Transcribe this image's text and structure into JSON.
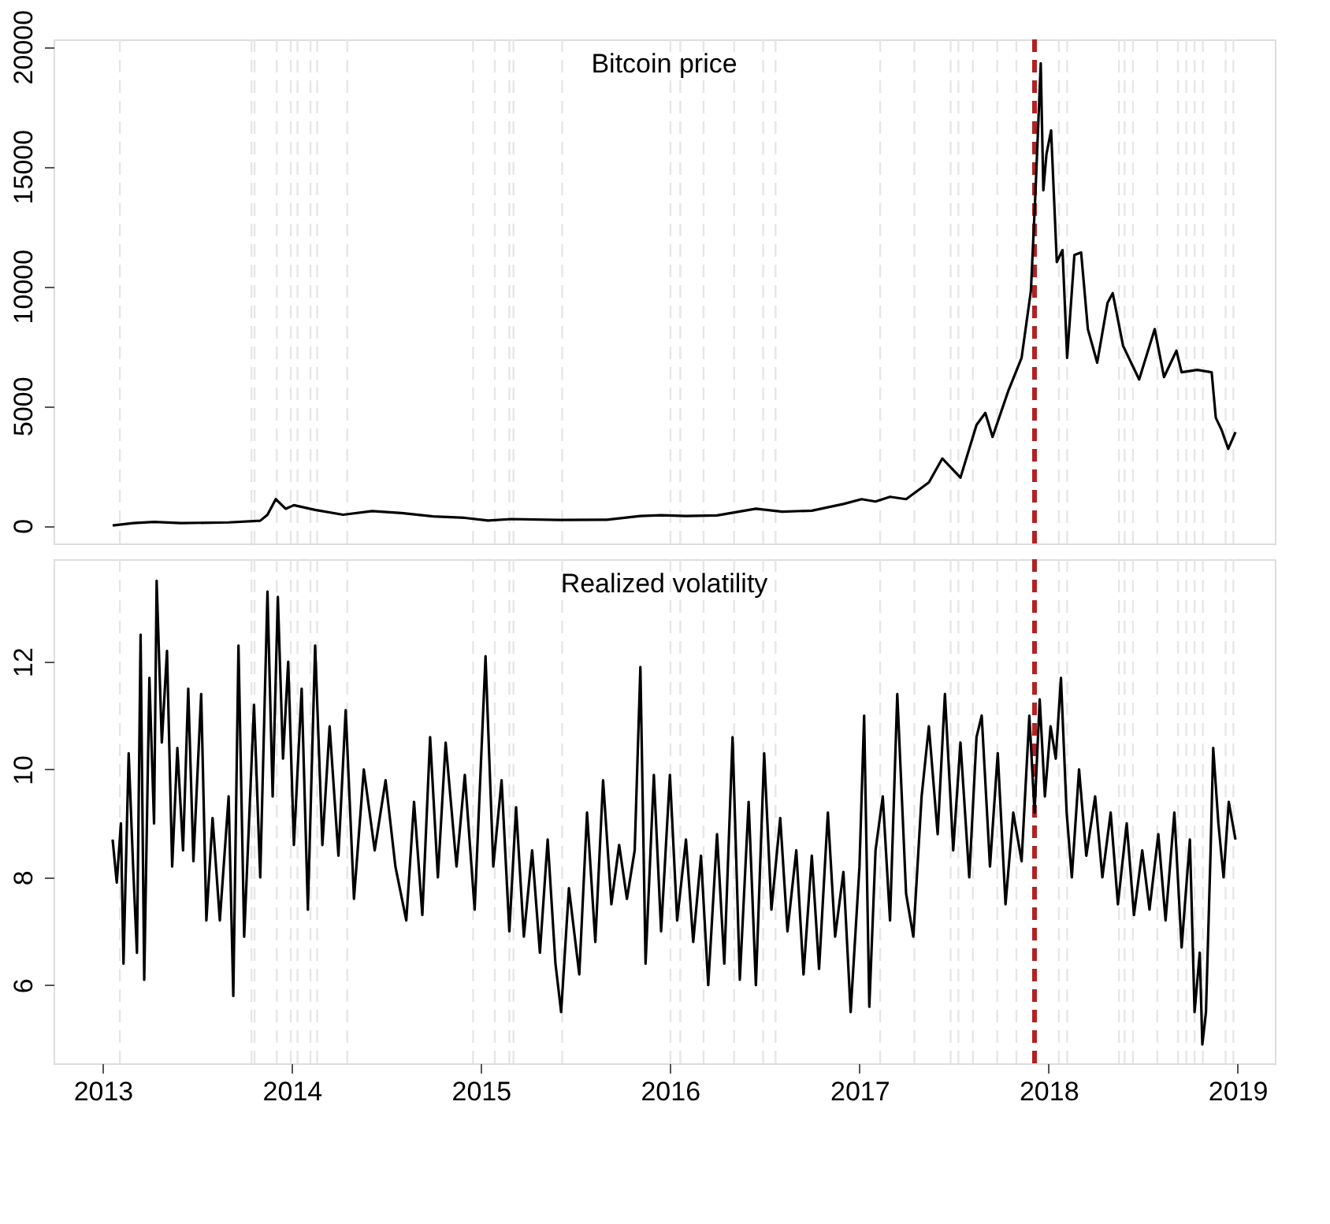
{
  "chart_data": [
    {
      "type": "line",
      "title": "Bitcoin price",
      "color": "#000000",
      "tick_labels": "y",
      "xlim": [
        "2012-09-28",
        "2019-03-14"
      ],
      "ylim": [
        -750,
        20300
      ],
      "yticks": [
        0,
        5000,
        10000,
        15000,
        20000
      ],
      "x": [
        "2013-01-20",
        "2013-03-01",
        "2013-04-10",
        "2013-06-01",
        "2013-09-01",
        "2013-11-01",
        "2013-11-15",
        "2013-12-01",
        "2013-12-20",
        "2014-01-05",
        "2014-02-15",
        "2014-04-10",
        "2014-06-05",
        "2014-08-01",
        "2014-10-01",
        "2014-12-01",
        "2015-01-15",
        "2015-03-01",
        "2015-06-01",
        "2015-09-01",
        "2015-11-05",
        "2015-12-15",
        "2016-02-01",
        "2016-04-01",
        "2016-06-15",
        "2016-08-05",
        "2016-10-01",
        "2016-12-01",
        "2017-01-05",
        "2017-02-01",
        "2017-03-01",
        "2017-04-01",
        "2017-05-15",
        "2017-06-10",
        "2017-07-15",
        "2017-08-15",
        "2017-09-01",
        "2017-09-15",
        "2017-10-15",
        "2017-11-10",
        "2017-11-28",
        "2017-12-07",
        "2017-12-17",
        "2017-12-22",
        "2017-12-28",
        "2018-01-06",
        "2018-01-17",
        "2018-01-28",
        "2018-02-06",
        "2018-02-20",
        "2018-03-05",
        "2018-03-18",
        "2018-04-05",
        "2018-04-25",
        "2018-05-05",
        "2018-05-25",
        "2018-06-25",
        "2018-07-25",
        "2018-08-12",
        "2018-09-05",
        "2018-09-15",
        "2018-10-15",
        "2018-11-12",
        "2018-11-20",
        "2018-12-01",
        "2018-12-14",
        "2018-12-28"
      ],
      "values": [
        0,
        100,
        150,
        100,
        130,
        200,
        450,
        1100,
        700,
        850,
        650,
        450,
        600,
        520,
        380,
        320,
        210,
        270,
        230,
        240,
        400,
        430,
        400,
        420,
        700,
        580,
        620,
        900,
        1100,
        1000,
        1200,
        1100,
        1800,
        2800,
        2000,
        4200,
        4700,
        3700,
        5600,
        7000,
        9800,
        14000,
        19300,
        14000,
        15500,
        16500,
        11000,
        11500,
        7000,
        11300,
        11400,
        8200,
        6800,
        9300,
        9700,
        7500,
        6100,
        8200,
        6200,
        7300,
        6400,
        6500,
        6400,
        4500,
        4000,
        3200,
        3900
      ],
      "ref_lines": [
        {
          "axis": "x",
          "value": "2013-02-03",
          "color": "#e6e6e6",
          "line_style": "dashed"
        },
        {
          "axis": "x",
          "value": "2013-10-15",
          "color": "#e6e6e6",
          "line_style": "dashed"
        },
        {
          "axis": "x",
          "value": "2013-10-21",
          "color": "#e6e6e6",
          "line_style": "dashed"
        },
        {
          "axis": "x",
          "value": "2013-12-03",
          "color": "#e6e6e6",
          "line_style": "dashed"
        },
        {
          "axis": "x",
          "value": "2013-12-30",
          "color": "#e6e6e6",
          "line_style": "dashed"
        },
        {
          "axis": "x",
          "value": "2014-01-12",
          "color": "#e6e6e6",
          "line_style": "dashed"
        },
        {
          "axis": "x",
          "value": "2014-02-06",
          "color": "#e6e6e6",
          "line_style": "dashed"
        },
        {
          "axis": "x",
          "value": "2014-02-19",
          "color": "#e6e6e6",
          "line_style": "dashed"
        },
        {
          "axis": "x",
          "value": "2014-04-18",
          "color": "#e6e6e6",
          "line_style": "dashed"
        },
        {
          "axis": "x",
          "value": "2014-12-17",
          "color": "#e6e6e6",
          "line_style": "dashed"
        },
        {
          "axis": "x",
          "value": "2015-01-28",
          "color": "#e6e6e6",
          "line_style": "dashed"
        },
        {
          "axis": "x",
          "value": "2015-02-25",
          "color": "#e6e6e6",
          "line_style": "dashed"
        },
        {
          "axis": "x",
          "value": "2015-03-05",
          "color": "#e6e6e6",
          "line_style": "dashed"
        },
        {
          "axis": "x",
          "value": "2015-06-07",
          "color": "#e6e6e6",
          "line_style": "dashed"
        },
        {
          "axis": "x",
          "value": "2016-01-02",
          "color": "#e6e6e6",
          "line_style": "dashed"
        },
        {
          "axis": "x",
          "value": "2016-01-21",
          "color": "#e6e6e6",
          "line_style": "dashed"
        },
        {
          "axis": "x",
          "value": "2016-03-06",
          "color": "#e6e6e6",
          "line_style": "dashed"
        },
        {
          "axis": "x",
          "value": "2016-05-04",
          "color": "#e6e6e6",
          "line_style": "dashed"
        },
        {
          "axis": "x",
          "value": "2016-06-29",
          "color": "#e6e6e6",
          "line_style": "dashed"
        },
        {
          "axis": "x",
          "value": "2016-07-23",
          "color": "#e6e6e6",
          "line_style": "dashed"
        },
        {
          "axis": "x",
          "value": "2017-02-10",
          "color": "#e6e6e6",
          "line_style": "dashed"
        },
        {
          "axis": "x",
          "value": "2017-04-17",
          "color": "#e6e6e6",
          "line_style": "dashed"
        },
        {
          "axis": "x",
          "value": "2017-06-26",
          "color": "#e6e6e6",
          "line_style": "dashed"
        },
        {
          "axis": "x",
          "value": "2017-07-11",
          "color": "#e6e6e6",
          "line_style": "dashed"
        },
        {
          "axis": "x",
          "value": "2017-08-08",
          "color": "#e6e6e6",
          "line_style": "dashed"
        },
        {
          "axis": "x",
          "value": "2017-09-24",
          "color": "#e6e6e6",
          "line_style": "dashed"
        },
        {
          "axis": "x",
          "value": "2017-10-31",
          "color": "#e6e6e6",
          "line_style": "dashed"
        },
        {
          "axis": "x",
          "value": "2018-01-21",
          "color": "#e6e6e6",
          "line_style": "dashed"
        },
        {
          "axis": "x",
          "value": "2018-02-06",
          "color": "#e6e6e6",
          "line_style": "dashed"
        },
        {
          "axis": "x",
          "value": "2018-05-17",
          "color": "#e6e6e6",
          "line_style": "dashed"
        },
        {
          "axis": "x",
          "value": "2018-05-28",
          "color": "#e6e6e6",
          "line_style": "dashed"
        },
        {
          "axis": "x",
          "value": "2018-06-13",
          "color": "#e6e6e6",
          "line_style": "dashed"
        },
        {
          "axis": "x",
          "value": "2018-07-30",
          "color": "#e6e6e6",
          "line_style": "dashed"
        },
        {
          "axis": "x",
          "value": "2018-09-08",
          "color": "#e6e6e6",
          "line_style": "dashed"
        },
        {
          "axis": "x",
          "value": "2018-09-24",
          "color": "#e6e6e6",
          "line_style": "dashed"
        },
        {
          "axis": "x",
          "value": "2018-10-10",
          "color": "#e6e6e6",
          "line_style": "dashed"
        },
        {
          "axis": "x",
          "value": "2018-10-26",
          "color": "#e6e6e6",
          "line_style": "dashed"
        },
        {
          "axis": "x",
          "value": "2018-12-09",
          "color": "#e6e6e6",
          "line_style": "dashed"
        },
        {
          "axis": "x",
          "value": "2018-12-24",
          "color": "#e6e6e6",
          "line_style": "dashed"
        },
        {
          "axis": "x",
          "value": "2017-12-05",
          "color": "#b22222",
          "line_style": "dashed"
        }
      ]
    },
    {
      "type": "line",
      "title": "Realized volatility",
      "color": "#000000",
      "xlim": [
        "2012-09-28",
        "2019-03-14"
      ],
      "xticks": [
        "2013",
        "2014",
        "2015",
        "2016",
        "2017",
        "2018",
        "2019"
      ],
      "ylim": [
        4.55,
        13.9
      ],
      "yticks": [
        6,
        8,
        10,
        12
      ],
      "x": [
        "2013-01-20",
        "2013-01-28",
        "2013-02-05",
        "2013-02-10",
        "2013-02-20",
        "2013-03-01",
        "2013-03-08",
        "2013-03-15",
        "2013-03-22",
        "2013-04-01",
        "2013-04-10",
        "2013-04-15",
        "2013-04-25",
        "2013-05-05",
        "2013-05-15",
        "2013-05-25",
        "2013-06-05",
        "2013-06-15",
        "2013-06-25",
        "2013-07-10",
        "2013-07-20",
        "2013-08-01",
        "2013-08-15",
        "2013-09-01",
        "2013-09-10",
        "2013-09-20",
        "2013-10-01",
        "2013-10-20",
        "2013-11-01",
        "2013-11-15",
        "2013-11-25",
        "2013-12-05",
        "2013-12-15",
        "2013-12-25",
        "2014-01-05",
        "2014-01-20",
        "2014-02-01",
        "2014-02-15",
        "2014-03-01",
        "2014-03-15",
        "2014-04-01",
        "2014-04-15",
        "2014-05-01",
        "2014-05-20",
        "2014-06-10",
        "2014-07-01",
        "2014-07-20",
        "2014-08-10",
        "2014-08-25",
        "2014-09-10",
        "2014-09-25",
        "2014-10-10",
        "2014-10-25",
        "2014-11-15",
        "2014-12-01",
        "2014-12-20",
        "2015-01-10",
        "2015-01-25",
        "2015-02-10",
        "2015-02-25",
        "2015-03-10",
        "2015-03-25",
        "2015-04-10",
        "2015-04-25",
        "2015-05-10",
        "2015-05-25",
        "2015-06-05",
        "2015-06-20",
        "2015-07-10",
        "2015-07-25",
        "2015-08-10",
        "2015-08-25",
        "2015-09-10",
        "2015-09-25",
        "2015-10-10",
        "2015-10-25",
        "2015-11-05",
        "2015-11-15",
        "2015-12-01",
        "2015-12-15",
        "2016-01-01",
        "2016-01-15",
        "2016-02-01",
        "2016-02-15",
        "2016-03-01",
        "2016-03-15",
        "2016-04-01",
        "2016-04-15",
        "2016-05-01",
        "2016-05-15",
        "2016-06-01",
        "2016-06-15",
        "2016-07-01",
        "2016-07-15",
        "2016-08-01",
        "2016-08-15",
        "2016-09-01",
        "2016-09-15",
        "2016-10-01",
        "2016-10-15",
        "2016-11-01",
        "2016-11-15",
        "2016-12-01",
        "2016-12-15",
        "2017-01-01",
        "2017-01-10",
        "2017-01-20",
        "2017-02-01",
        "2017-02-15",
        "2017-03-01",
        "2017-03-15",
        "2017-04-01",
        "2017-04-15",
        "2017-05-01",
        "2017-05-15",
        "2017-06-01",
        "2017-06-15",
        "2017-07-01",
        "2017-07-15",
        "2017-08-01",
        "2017-08-15",
        "2017-08-25",
        "2017-09-10",
        "2017-09-25",
        "2017-10-10",
        "2017-10-25",
        "2017-11-10",
        "2017-11-25",
        "2017-12-05",
        "2017-12-15",
        "2017-12-25",
        "2018-01-05",
        "2018-01-15",
        "2018-01-25",
        "2018-02-05",
        "2018-02-15",
        "2018-03-01",
        "2018-03-15",
        "2018-04-01",
        "2018-04-15",
        "2018-05-01",
        "2018-05-15",
        "2018-06-01",
        "2018-06-15",
        "2018-07-01",
        "2018-07-15",
        "2018-08-01",
        "2018-08-15",
        "2018-09-01",
        "2018-09-15",
        "2018-10-01",
        "2018-10-10",
        "2018-10-20",
        "2018-10-25",
        "2018-11-01",
        "2018-11-10",
        "2018-11-15",
        "2018-11-25",
        "2018-12-05",
        "2018-12-15",
        "2018-12-28"
      ],
      "values": [
        8.7,
        7.9,
        9.0,
        6.4,
        10.3,
        8.1,
        6.6,
        12.5,
        6.1,
        11.7,
        9.0,
        13.5,
        10.5,
        12.2,
        8.2,
        10.4,
        8.5,
        11.5,
        8.3,
        11.4,
        7.2,
        9.1,
        7.2,
        9.5,
        5.8,
        12.3,
        6.9,
        11.2,
        8.0,
        13.3,
        9.5,
        13.2,
        10.2,
        12.0,
        8.6,
        11.5,
        7.4,
        12.3,
        8.6,
        10.8,
        8.4,
        11.1,
        7.6,
        10.0,
        8.5,
        9.8,
        8.2,
        7.2,
        9.4,
        7.3,
        10.6,
        8.0,
        10.5,
        8.2,
        9.9,
        7.4,
        12.1,
        8.2,
        9.8,
        7.0,
        9.3,
        6.9,
        8.5,
        6.6,
        8.7,
        6.4,
        5.5,
        7.8,
        6.2,
        9.2,
        6.8,
        9.8,
        7.5,
        8.6,
        7.6,
        8.5,
        11.9,
        6.4,
        9.9,
        7.0,
        9.9,
        7.2,
        8.7,
        6.8,
        8.4,
        6.0,
        8.8,
        6.4,
        10.6,
        6.1,
        9.4,
        6.0,
        10.3,
        7.4,
        9.1,
        7.0,
        8.5,
        6.2,
        8.4,
        6.3,
        9.2,
        6.9,
        8.1,
        5.5,
        8.2,
        11.0,
        5.6,
        8.5,
        9.5,
        7.2,
        11.4,
        7.7,
        6.9,
        9.5,
        10.8,
        8.8,
        11.4,
        8.5,
        10.5,
        8.0,
        10.6,
        11.0,
        8.2,
        10.3,
        7.5,
        9.2,
        8.3,
        11.0,
        9.2,
        11.3,
        9.5,
        10.8,
        10.2,
        11.7,
        9.2,
        8.0,
        10.0,
        8.4,
        9.5,
        8.0,
        9.2,
        7.5,
        9.0,
        7.3,
        8.5,
        7.4,
        8.8,
        7.2,
        9.2,
        6.7,
        8.7,
        5.5,
        6.6,
        4.9,
        5.5,
        8.5,
        10.4,
        9.0,
        8.0,
        9.4,
        8.7
      ],
      "ref_lines": [
        {
          "axis": "x",
          "value": "2013-02-03",
          "color": "#e6e6e6",
          "line_style": "dashed"
        },
        {
          "axis": "x",
          "value": "2013-10-15",
          "color": "#e6e6e6",
          "line_style": "dashed"
        },
        {
          "axis": "x",
          "value": "2013-10-21",
          "color": "#e6e6e6",
          "line_style": "dashed"
        },
        {
          "axis": "x",
          "value": "2013-12-03",
          "color": "#e6e6e6",
          "line_style": "dashed"
        },
        {
          "axis": "x",
          "value": "2013-12-30",
          "color": "#e6e6e6",
          "line_style": "dashed"
        },
        {
          "axis": "x",
          "value": "2014-01-12",
          "color": "#e6e6e6",
          "line_style": "dashed"
        },
        {
          "axis": "x",
          "value": "2014-02-06",
          "color": "#e6e6e6",
          "line_style": "dashed"
        },
        {
          "axis": "x",
          "value": "2014-02-19",
          "color": "#e6e6e6",
          "line_style": "dashed"
        },
        {
          "axis": "x",
          "value": "2014-04-18",
          "color": "#e6e6e6",
          "line_style": "dashed"
        },
        {
          "axis": "x",
          "value": "2014-12-17",
          "color": "#e6e6e6",
          "line_style": "dashed"
        },
        {
          "axis": "x",
          "value": "2015-01-28",
          "color": "#e6e6e6",
          "line_style": "dashed"
        },
        {
          "axis": "x",
          "value": "2015-02-25",
          "color": "#e6e6e6",
          "line_style": "dashed"
        },
        {
          "axis": "x",
          "value": "2015-03-05",
          "color": "#e6e6e6",
          "line_style": "dashed"
        },
        {
          "axis": "x",
          "value": "2015-06-07",
          "color": "#e6e6e6",
          "line_style": "dashed"
        },
        {
          "axis": "x",
          "value": "2016-01-02",
          "color": "#e6e6e6",
          "line_style": "dashed"
        },
        {
          "axis": "x",
          "value": "2016-01-21",
          "color": "#e6e6e6",
          "line_style": "dashed"
        },
        {
          "axis": "x",
          "value": "2016-03-06",
          "color": "#e6e6e6",
          "line_style": "dashed"
        },
        {
          "axis": "x",
          "value": "2016-05-04",
          "color": "#e6e6e6",
          "line_style": "dashed"
        },
        {
          "axis": "x",
          "value": "2016-06-29",
          "color": "#e6e6e6",
          "line_style": "dashed"
        },
        {
          "axis": "x",
          "value": "2016-07-23",
          "color": "#e6e6e6",
          "line_style": "dashed"
        },
        {
          "axis": "x",
          "value": "2017-02-10",
          "color": "#e6e6e6",
          "line_style": "dashed"
        },
        {
          "axis": "x",
          "value": "2017-04-17",
          "color": "#e6e6e6",
          "line_style": "dashed"
        },
        {
          "axis": "x",
          "value": "2017-06-26",
          "color": "#e6e6e6",
          "line_style": "dashed"
        },
        {
          "axis": "x",
          "value": "2017-07-11",
          "color": "#e6e6e6",
          "line_style": "dashed"
        },
        {
          "axis": "x",
          "value": "2017-08-08",
          "color": "#e6e6e6",
          "line_style": "dashed"
        },
        {
          "axis": "x",
          "value": "2017-09-24",
          "color": "#e6e6e6",
          "line_style": "dashed"
        },
        {
          "axis": "x",
          "value": "2017-10-31",
          "color": "#e6e6e6",
          "line_style": "dashed"
        },
        {
          "axis": "x",
          "value": "2018-01-21",
          "color": "#e6e6e6",
          "line_style": "dashed"
        },
        {
          "axis": "x",
          "value": "2018-02-06",
          "color": "#e6e6e6",
          "line_style": "dashed"
        },
        {
          "axis": "x",
          "value": "2018-05-17",
          "color": "#e6e6e6",
          "line_style": "dashed"
        },
        {
          "axis": "x",
          "value": "2018-05-28",
          "color": "#e6e6e6",
          "line_style": "dashed"
        },
        {
          "axis": "x",
          "value": "2018-06-13",
          "color": "#e6e6e6",
          "line_style": "dashed"
        },
        {
          "axis": "x",
          "value": "2018-07-30",
          "color": "#e6e6e6",
          "line_style": "dashed"
        },
        {
          "axis": "x",
          "value": "2018-09-08",
          "color": "#e6e6e6",
          "line_style": "dashed"
        },
        {
          "axis": "x",
          "value": "2018-09-24",
          "color": "#e6e6e6",
          "line_style": "dashed"
        },
        {
          "axis": "x",
          "value": "2018-10-10",
          "color": "#e6e6e6",
          "line_style": "dashed"
        },
        {
          "axis": "x",
          "value": "2018-10-26",
          "color": "#e6e6e6",
          "line_style": "dashed"
        },
        {
          "axis": "x",
          "value": "2018-12-09",
          "color": "#e6e6e6",
          "line_style": "dashed"
        },
        {
          "axis": "x",
          "value": "2018-12-24",
          "color": "#e6e6e6",
          "line_style": "dashed"
        },
        {
          "axis": "x",
          "value": "2017-12-05",
          "color": "#b22222",
          "line_style": "dashed"
        }
      ]
    }
  ]
}
